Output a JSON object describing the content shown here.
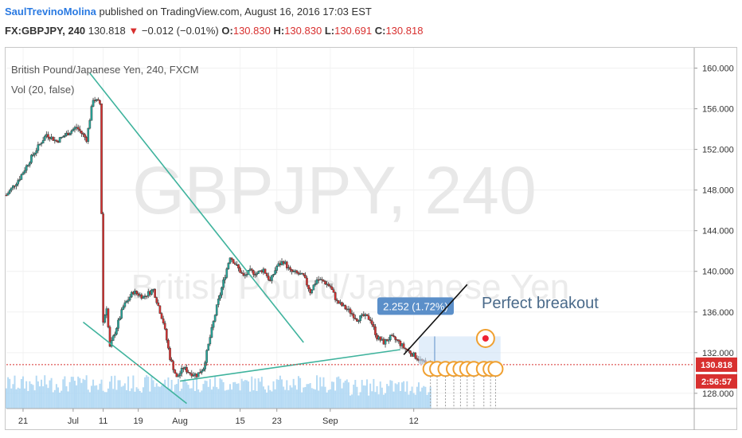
{
  "header": {
    "author": "SaulTrevinoMolina",
    "published_text": " published on TradingView.com, August 16, 2016 17:03 EST",
    "symbol_line": "FX:GBPJPY, 240",
    "last": "130.818",
    "change": "−0.012 (−0.01%)",
    "open_label": "O:",
    "open": "130.830",
    "high_label": "H:",
    "high": "130.830",
    "low_label": "L:",
    "low": "130.691",
    "close_label": "C:",
    "close": "130.818"
  },
  "chart_legend": {
    "title": "British Pound/Japanese Yen, 240, FXCM",
    "indicator": "Vol (20, false)"
  },
  "watermark": {
    "symbol": "GBPJPY, 240",
    "name": "British Pound/Japanese Yen"
  },
  "colors": {
    "up": "#26a69a",
    "down": "#d8302f",
    "trendline": "#3fb39d",
    "volume_blue": "#a8d4f2",
    "price_tag": "#d8302f",
    "measure": "#5b8fc9"
  },
  "annotations": {
    "measure_label": "2.252 (1.72%)",
    "breakout_text": "Perfect breakout"
  },
  "price_axis": {
    "current_price": "130.818",
    "countdown": "2:56:57"
  },
  "chart_data": {
    "type": "candlestick",
    "title": "British Pound/Japanese Yen, 240, FXCM",
    "ylim": [
      126.5,
      162
    ],
    "y_ticks": [
      "160.000",
      "156.000",
      "152.000",
      "148.000",
      "144.000",
      "140.000",
      "136.000",
      "132.000",
      "128.000"
    ],
    "x_ticks": [
      "21",
      "Jul",
      "11",
      "19",
      "Aug",
      "15",
      "23",
      "Sep",
      "12"
    ],
    "price_path": [
      [
        0,
        147.5
      ],
      [
        8,
        149.2
      ],
      [
        16,
        151.5
      ],
      [
        24,
        153.5
      ],
      [
        30,
        152.8
      ],
      [
        36,
        153.5
      ],
      [
        42,
        154.2
      ],
      [
        48,
        153.0
      ],
      [
        52,
        157.0
      ],
      [
        56,
        156.5
      ],
      [
        58,
        135.0
      ],
      [
        60,
        136.5
      ],
      [
        62,
        132.5
      ],
      [
        66,
        134.5
      ],
      [
        70,
        136.5
      ],
      [
        76,
        138.0
      ],
      [
        82,
        137.5
      ],
      [
        88,
        138.2
      ],
      [
        94,
        135.0
      ],
      [
        98,
        131.5
      ],
      [
        102,
        129.5
      ],
      [
        106,
        130.5
      ],
      [
        110,
        130.0
      ],
      [
        114,
        129.8
      ],
      [
        118,
        130.5
      ],
      [
        122,
        133.5
      ],
      [
        126,
        136.5
      ],
      [
        130,
        139.0
      ],
      [
        134,
        141.5
      ],
      [
        138,
        140.5
      ],
      [
        142,
        139.5
      ],
      [
        146,
        140.0
      ],
      [
        150,
        139.8
      ],
      [
        154,
        140.2
      ],
      [
        158,
        139.0
      ],
      [
        162,
        140.5
      ],
      [
        166,
        141.0
      ],
      [
        170,
        140.0
      ],
      [
        174,
        139.8
      ],
      [
        178,
        139.5
      ],
      [
        182,
        138.0
      ],
      [
        186,
        139.2
      ],
      [
        190,
        139.0
      ],
      [
        194,
        138.5
      ],
      [
        198,
        137.0
      ],
      [
        202,
        136.5
      ],
      [
        206,
        136.0
      ],
      [
        210,
        135.3
      ],
      [
        214,
        135.6
      ],
      [
        218,
        135.3
      ],
      [
        222,
        133.5
      ],
      [
        226,
        133.0
      ],
      [
        230,
        133.5
      ],
      [
        234,
        133.2
      ],
      [
        238,
        132.5
      ],
      [
        242,
        132.0
      ],
      [
        246,
        131.5
      ],
      [
        250,
        131.0
      ],
      [
        254,
        130.8
      ]
    ],
    "trendlines": [
      {
        "name": "descending",
        "from": [
          50,
          159.5
        ],
        "to": [
          178,
          133.0
        ]
      },
      {
        "name": "rising",
        "from": [
          104,
          129.2
        ],
        "to": [
          236,
          132.3
        ]
      },
      {
        "name": "lower",
        "from": [
          46,
          135.0
        ],
        "to": [
          108,
          127.0
        ]
      }
    ],
    "last_price": 130.818
  }
}
